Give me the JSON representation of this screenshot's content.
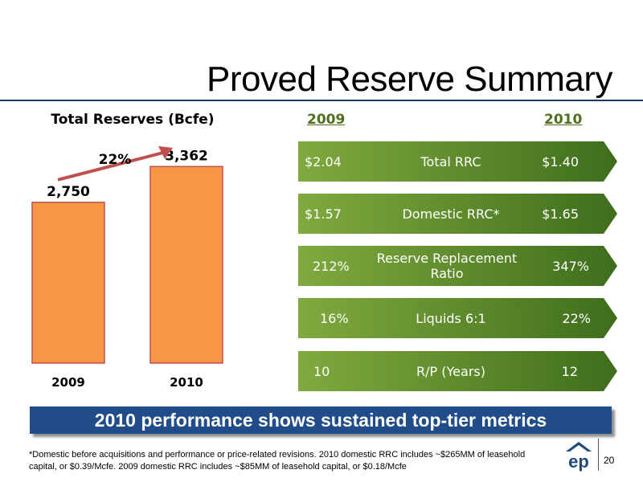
{
  "slide": {
    "title": "Proved Reserve Summary",
    "banner": "2010 performance shows sustained top-tier metrics",
    "footnote": "*Domestic before acquisitions and performance or price-related revisions.  2010 domestic RRC includes ~$265MM of leasehold capital, or $0.39/Mcfe.  2009 domestic RRC includes ~$85MM of leasehold capital, or $0.18/Mcfe",
    "page_number": "20",
    "logo_text": "ep"
  },
  "chart_data": {
    "type": "bar",
    "title": "Total Reserves (Bcfe)",
    "categories": [
      "2009",
      "2010"
    ],
    "values": [
      2750,
      3362
    ],
    "value_labels": [
      "2,750",
      "3,362"
    ],
    "growth_label": "22%",
    "ylim": [
      0,
      3600
    ],
    "grid": false,
    "legend": "none",
    "xlabel": "",
    "ylabel": ""
  },
  "metrics": {
    "col_2009": "2009",
    "col_2010": "2010",
    "rows": [
      {
        "label": "Total RRC",
        "v2009": "$2.04",
        "v2010": "$1.40"
      },
      {
        "label": "Domestic RRC*",
        "v2009": "$1.57",
        "v2010": "$1.65"
      },
      {
        "label": "Reserve Replacement Ratio",
        "v2009": "212%",
        "v2010": "347%"
      },
      {
        "label": "Liquids 6:1",
        "v2009": "16%",
        "v2010": "22%"
      },
      {
        "label": "R/P (Years)",
        "v2009": "10",
        "v2010": "12"
      }
    ]
  },
  "colors": {
    "bar": "#f79646",
    "bar_border": "#c0504d",
    "growth_arrow": "#c0504d",
    "metric_green_light": "#76a03a",
    "metric_green_dark": "#3f6d1c",
    "banner": "#204c8a",
    "header_green": "#4f6e1e"
  }
}
